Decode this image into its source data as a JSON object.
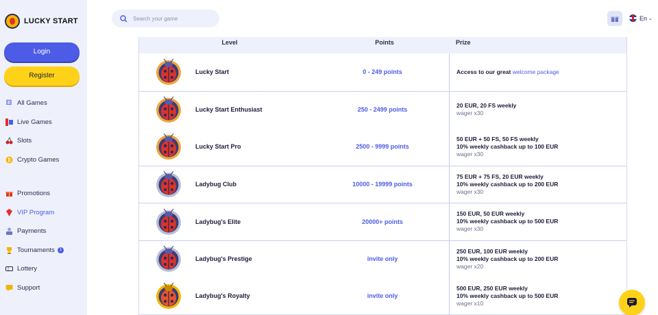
{
  "brand": {
    "name": "LUCKY START"
  },
  "auth": {
    "login": "Login",
    "register": "Register"
  },
  "nav_main": [
    {
      "label": "All Games",
      "icon": "dice-icon"
    },
    {
      "label": "Live Games",
      "icon": "live-icon"
    },
    {
      "label": "Slots",
      "icon": "cherry-icon"
    },
    {
      "label": "Crypto Games",
      "icon": "coin-icon"
    }
  ],
  "nav_secondary": [
    {
      "label": "Promotions",
      "icon": "gift-icon"
    },
    {
      "label": "VIP Program",
      "icon": "vip-icon"
    },
    {
      "label": "Payments",
      "icon": "payments-icon"
    },
    {
      "label": "Tournaments",
      "icon": "trophy-icon",
      "badge": "1"
    },
    {
      "label": "Lottery",
      "icon": "ticket-icon"
    },
    {
      "label": "Support",
      "icon": "support-icon"
    }
  ],
  "header": {
    "search_placeholder": "Search your game",
    "language": "En"
  },
  "table": {
    "headers": {
      "level": "Level",
      "points": "Points",
      "prize": "Prize"
    },
    "rows": [
      {
        "level": "Lucky Start",
        "points": "0 - 249 points",
        "prize_1": "Access to our great ",
        "prize_link": "welcome package",
        "bug": "red"
      },
      {
        "level": "Lucky Start Enthusiast",
        "points": "250 - 2499 points",
        "prize_1": "20 EUR, 20 FS weekly",
        "prize_2": "wager x30",
        "bug": "red"
      },
      {
        "level": "Lucky Start Pro",
        "points": "2500 - 9999 points",
        "prize_1": "50 EUR + 50 FS, 50 FS weekly",
        "prize_2": "10% weekly cashback up to 100 EUR",
        "prize_3": "wager x30",
        "bug": "red"
      },
      {
        "level": "Ladybug Club",
        "points": "10000 - 19999 points",
        "prize_1": "75 EUR + 75 FS, 20 EUR weekly",
        "prize_2": "10% weekly cashback up to 200 EUR",
        "prize_3": "wager x30",
        "bug": "silver"
      },
      {
        "level": "Ladybug's Elite",
        "points": "20000+ points",
        "prize_1": "150 EUR, 50 EUR weekly",
        "prize_2": "10% weekly cashback up to 500 EUR",
        "prize_3": "wager x30",
        "bug": "silver"
      },
      {
        "level": "Ladybug's Prestige",
        "points": "invite only",
        "prize_1": "250 EUR, 100 EUR weekly",
        "prize_2": "10% weekly cashback up to 200 EUR",
        "prize_3": "wager x20",
        "bug": "silver"
      },
      {
        "level": "Ladybug's Royalty",
        "points": "invite only",
        "prize_1": "500 EUR, 250 EUR weekly",
        "prize_2": "10% weekly cashback up to 500 EUR",
        "prize_3": "wager x10",
        "bug": "gold"
      }
    ]
  },
  "colors": {
    "accent": "#4c5ce6",
    "yellow": "#ffd21a",
    "sidebar_bg": "#eef1fb"
  }
}
